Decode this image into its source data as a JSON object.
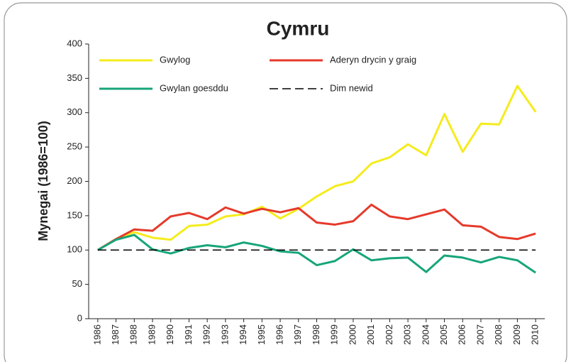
{
  "chart_data": {
    "type": "line",
    "title": "Cymru",
    "y_label": "Mynegai (1986=100)",
    "x": [
      1986,
      1987,
      1988,
      1989,
      1990,
      1991,
      1992,
      1993,
      1994,
      1995,
      1996,
      1997,
      1998,
      1999,
      2000,
      2001,
      2002,
      2003,
      2004,
      2005,
      2006,
      2007,
      2008,
      2009,
      2010
    ],
    "xlim": [
      1985.5,
      2010.5
    ],
    "xticks": [
      1986,
      1987,
      1988,
      1989,
      1990,
      1991,
      1992,
      1993,
      1994,
      1995,
      1996,
      1997,
      1998,
      1999,
      2000,
      2001,
      2002,
      2003,
      2004,
      2005,
      2006,
      2007,
      2008,
      2009,
      2010
    ],
    "ylim": [
      0,
      400
    ],
    "yticks": [
      0,
      50,
      100,
      150,
      200,
      250,
      300,
      350,
      400
    ],
    "series": [
      {
        "name": "Gwylog",
        "color": "#f5ec1c",
        "values": [
          100,
          116,
          126,
          118,
          115,
          135,
          137,
          149,
          152,
          163,
          146,
          160,
          178,
          193,
          200,
          226,
          235,
          254,
          238,
          298,
          243,
          284,
          283,
          339,
          301
        ]
      },
      {
        "name": "Aderyn drycin y graig",
        "color": "#e53a2b",
        "values": [
          100,
          116,
          130,
          128,
          149,
          154,
          145,
          162,
          153,
          160,
          155,
          161,
          140,
          137,
          142,
          166,
          149,
          145,
          152,
          159,
          136,
          134,
          119,
          116,
          124
        ]
      },
      {
        "name": "Gwylan goesddu",
        "color": "#17a57a",
        "values": [
          100,
          115,
          122,
          101,
          95,
          103,
          107,
          104,
          111,
          106,
          98,
          96,
          78,
          84,
          101,
          85,
          88,
          89,
          68,
          92,
          89,
          82,
          90,
          85,
          67
        ]
      },
      {
        "name": "Dim newid",
        "color": "#000000",
        "dashed": true,
        "values": [
          100,
          100,
          100,
          100,
          100,
          100,
          100,
          100,
          100,
          100,
          100,
          100,
          100,
          100,
          100,
          100,
          100,
          100,
          100,
          100,
          100,
          100,
          100,
          100,
          100
        ]
      }
    ]
  }
}
